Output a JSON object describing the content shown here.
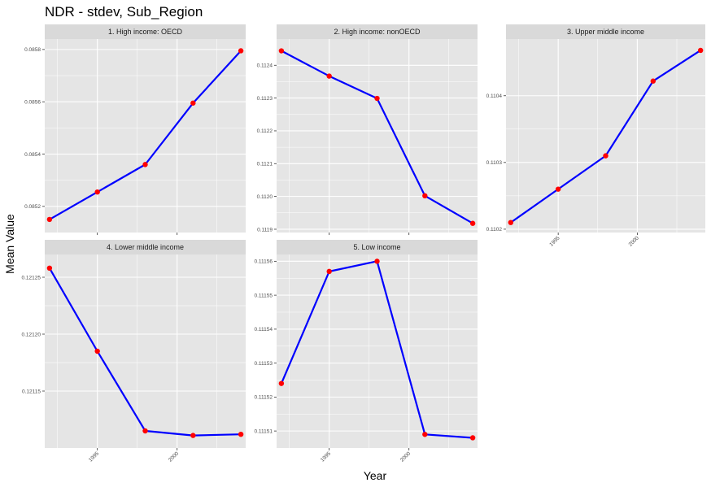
{
  "title": "NDR - stdev, Sub_Region",
  "xlabel": "Year",
  "ylabel": "Mean Value",
  "colors": {
    "line": "#0000ff",
    "point": "#ff0000",
    "panel": "#e5e5e5",
    "strip": "#d9d9d9",
    "grid": "#ffffff"
  },
  "chart_data": {
    "type": "line",
    "facet_by": "Sub_Region",
    "x": [
      1992,
      1995,
      1998,
      2001,
      2004
    ],
    "xlim": [
      1991.7,
      2004.3
    ],
    "xticks": [
      1995,
      2000
    ],
    "grid": true,
    "panels": [
      {
        "name": "1. High income: OECD",
        "values": [
          0.08515,
          0.085255,
          0.08536,
          0.085595,
          0.085795
        ],
        "ylim": [
          0.0851,
          0.08584
        ],
        "yticks": [
          0.0852,
          0.0854,
          0.0856,
          0.0858
        ],
        "ytick_labels": [
          "0.0852",
          "0.0854",
          "0.0856",
          "0.0858"
        ]
      },
      {
        "name": "2. High income: nonOECD",
        "values": [
          0.112444,
          0.112367,
          0.112299,
          0.112002,
          0.111918
        ],
        "ylim": [
          0.11189,
          0.11248
        ],
        "yticks": [
          0.1119,
          0.112,
          0.1121,
          0.1122,
          0.1123,
          0.1124
        ],
        "ytick_labels": [
          "0.1119",
          "0.1120",
          "0.1121",
          "0.1122",
          "0.1123",
          "0.1124"
        ]
      },
      {
        "name": "3. Upper middle income",
        "values": [
          0.11021,
          0.11026,
          0.11031,
          0.110422,
          0.110468
        ],
        "ylim": [
          0.110195,
          0.110485
        ],
        "yticks": [
          0.1102,
          0.1103,
          0.1104
        ],
        "ytick_labels": [
          "0.1102",
          "0.1103",
          "0.1104"
        ]
      },
      {
        "name": "4. Lower middle income",
        "values": [
          0.121258,
          0.121185,
          0.121115,
          0.121111,
          0.121112
        ],
        "ylim": [
          0.1211,
          0.12127
        ],
        "yticks": [
          0.12115,
          0.1212,
          0.12125
        ],
        "ytick_labels": [
          "0.12115",
          "0.12120",
          "0.12125"
        ]
      },
      {
        "name": "5. Low income",
        "values": [
          0.111524,
          0.111557,
          0.11156,
          0.111509,
          0.111508
        ],
        "ylim": [
          0.111505,
          0.111562
        ],
        "yticks": [
          0.11151,
          0.11152,
          0.11153,
          0.11154,
          0.11155,
          0.11156
        ],
        "ytick_labels": [
          "0.11151",
          "0.11152",
          "0.11153",
          "0.11154",
          "0.11155",
          "0.11156"
        ]
      }
    ]
  }
}
